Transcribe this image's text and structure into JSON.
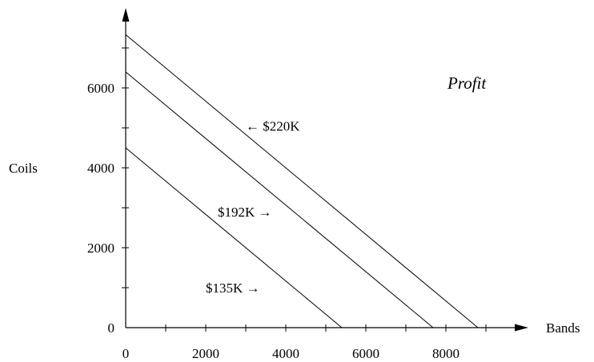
{
  "chart_data": {
    "type": "line",
    "title": "Profit",
    "xlabel": "Bands",
    "ylabel": "Coils",
    "xlim": [
      0,
      10000
    ],
    "ylim": [
      0,
      7500
    ],
    "x_ticks": [
      0,
      2000,
      4000,
      6000,
      8000
    ],
    "x_tick_labels": [
      "0",
      "2000",
      "4000",
      "6000",
      "8000"
    ],
    "x_minor_ticks": [
      1000,
      3000,
      5000,
      7000,
      9000
    ],
    "y_ticks": [
      0,
      2000,
      4000,
      6000
    ],
    "y_tick_labels": [
      "0",
      "2000",
      "4000",
      "6000"
    ],
    "y_minor_ticks": [
      1000,
      3000,
      5000,
      7000
    ],
    "grid": false,
    "series": [
      {
        "name": "$135K",
        "x": [
          0,
          5400
        ],
        "y": [
          4500,
          0
        ]
      },
      {
        "name": "$192K",
        "x": [
          0,
          7680
        ],
        "y": [
          6400,
          0
        ]
      },
      {
        "name": "$220K",
        "x": [
          0,
          8800
        ],
        "y": [
          7333,
          0
        ]
      }
    ],
    "annotations": [
      {
        "text": "$135K →",
        "x": 2000,
        "y": 1000,
        "series": "$135K"
      },
      {
        "text": "$192K →",
        "x": 2300,
        "y": 2900,
        "series": "$192K"
      },
      {
        "text": "← $220K",
        "x": 3000,
        "y": 5050,
        "series": "$220K"
      }
    ]
  }
}
